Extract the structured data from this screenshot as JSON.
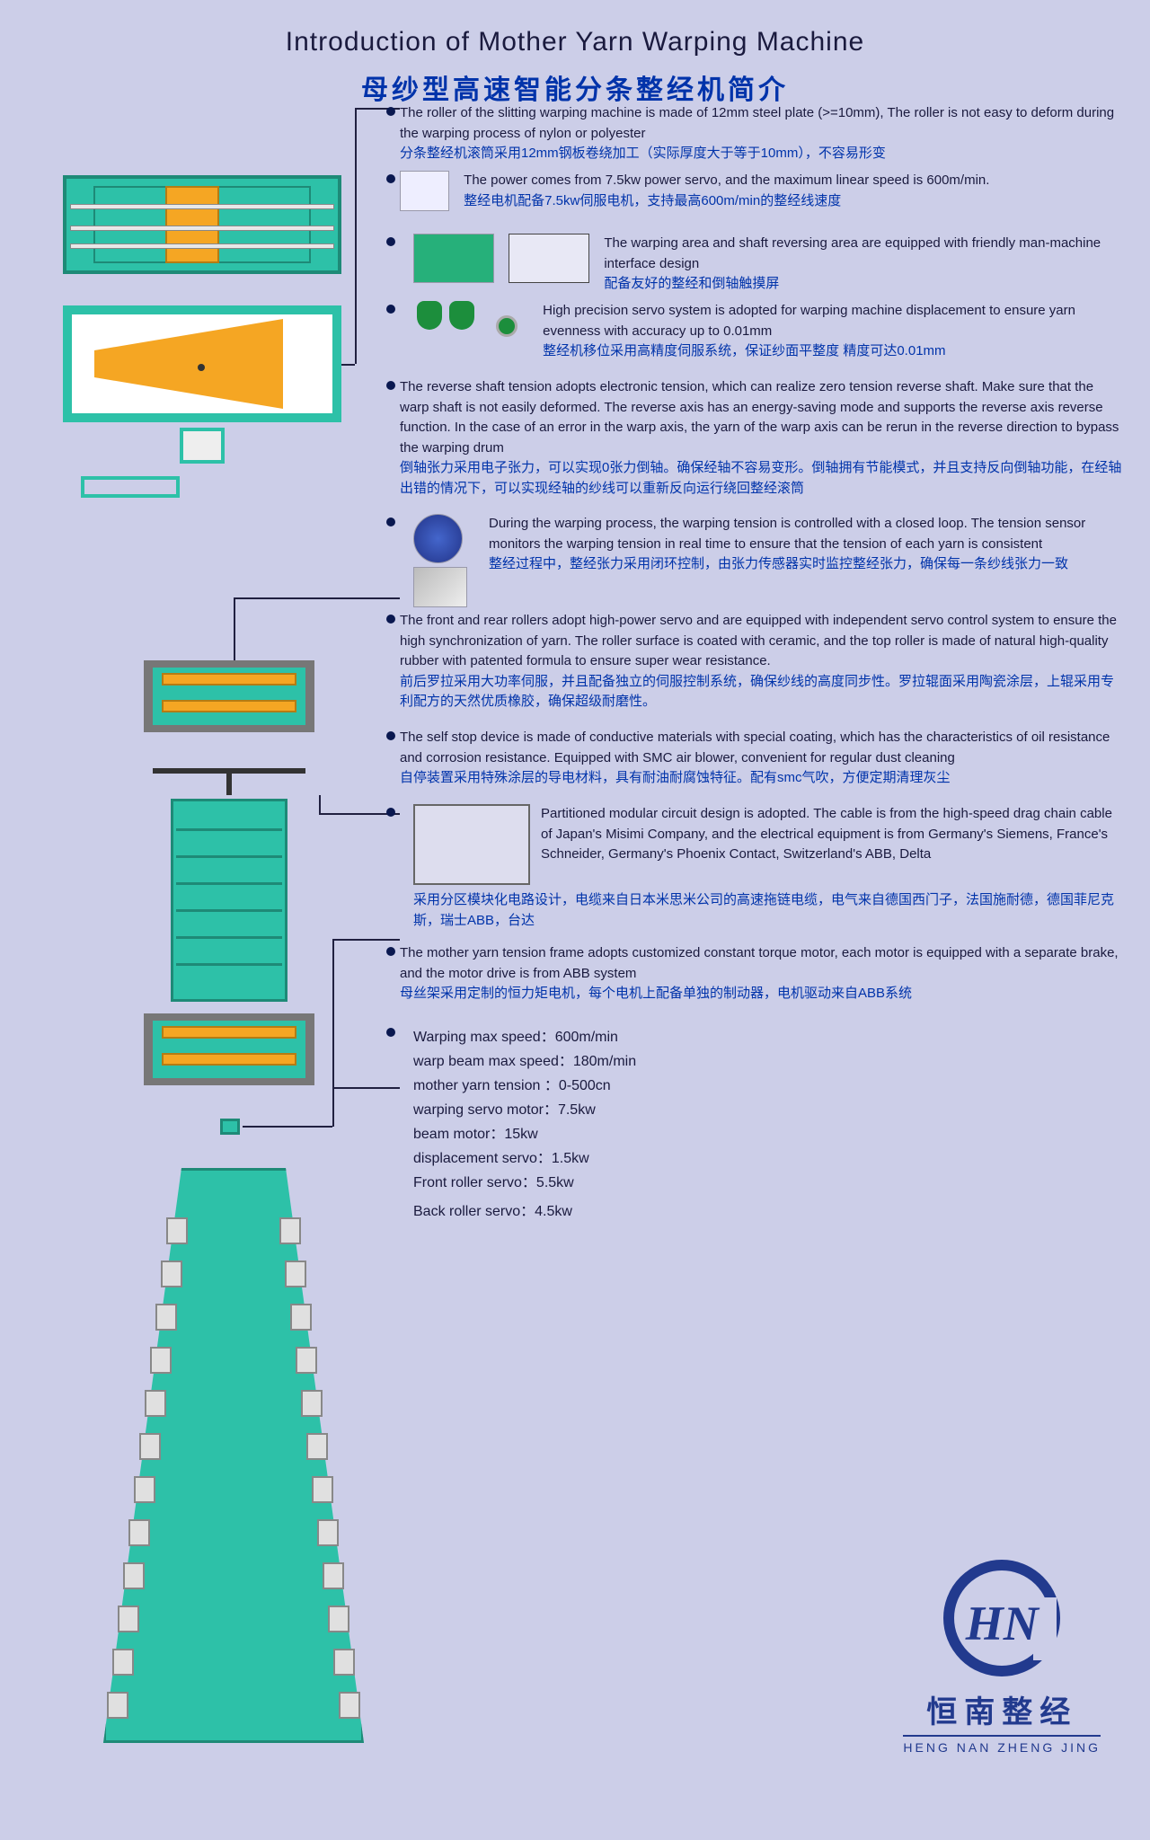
{
  "title_en": "Introduction of Mother Yarn Warping Machine",
  "title_cn": "母纱型高速智能分条整经机简介",
  "colors": {
    "background": "#cccee8",
    "teal": "#2dc1a8",
    "teal_dark": "#1e8a77",
    "orange": "#f5a623",
    "text": "#1a1a3e",
    "text_cn": "#0033aa",
    "brand": "#223a8e"
  },
  "callouts": [
    {
      "en": "The roller of the slitting warping machine is made of 12mm steel plate (>=10mm), The roller is not easy to deform during the warping process of nylon or polyester",
      "cn": "分条整经机滚筒采用12mm钢板卷绕加工（实际厚度大于等于10mm），不容易形变"
    },
    {
      "en": "The power comes from 7.5kw power servo, and the maximum linear speed is 600m/min.",
      "cn": "整经电机配备7.5kw伺服电机，支持最高600m/min的整经线速度"
    },
    {
      "en": "The warping area and shaft reversing area are equipped with friendly man-machine interface design",
      "cn": "配备友好的整经和倒轴触摸屏"
    },
    {
      "en": "High precision servo system is adopted for warping machine displacement to ensure yarn evenness with accuracy up to 0.01mm",
      "cn": "整经机移位采用高精度伺服系统，保证纱面平整度 精度可达0.01mm"
    },
    {
      "en": "The reverse shaft tension adopts electronic tension, which can realize zero tension reverse shaft. Make sure that the warp shaft is not easily deformed. The reverse axis has an energy-saving mode and supports the reverse axis reverse function. In the case of an error in the warp axis, the yarn of the warp axis can be rerun in the reverse direction to bypass the warping drum",
      "cn": "倒轴张力采用电子张力，可以实现0张力倒轴。确保经轴不容易变形。倒轴拥有节能模式，并且支持反向倒轴功能，在经轴出错的情况下，可以实现经轴的纱线可以重新反向运行绕回整经滚筒"
    },
    {
      "en": "During the warping process, the warping tension is controlled with a closed loop. The tension sensor monitors the warping tension in real time to ensure that the tension of each yarn is consistent",
      "cn": "整经过程中，整经张力采用闭环控制，由张力传感器实时监控整经张力，确保每一条纱线张力一致"
    },
    {
      "en": "The front and rear rollers adopt high-power servo and are equipped with independent servo control system to ensure the high synchronization of yarn. The roller surface is coated with ceramic, and the top roller is made of natural high-quality rubber with patented formula to ensure super wear resistance.",
      "cn": "前后罗拉采用大功率伺服，并且配备独立的伺服控制系统，确保纱线的高度同步性。罗拉辊面采用陶瓷涂层，上辊采用专利配方的天然优质橡胶，确保超级耐磨性。"
    },
    {
      "en": "The self stop device is made of conductive materials with special coating, which has the characteristics of oil resistance and corrosion resistance. Equipped with SMC air blower, convenient for regular dust cleaning",
      "cn": "自停装置采用特殊涂层的导电材料，具有耐油耐腐蚀特征。配有smc气吹，方便定期清理灰尘"
    },
    {
      "en": "Partitioned modular circuit design is adopted. The cable is from the high-speed drag chain cable of Japan's Misimi Company, and the electrical equipment is from Germany's Siemens, France's Schneider, Germany's Phoenix Contact, Switzerland's ABB, Delta",
      "cn": "采用分区模块化电路设计，电缆来自日本米思米公司的高速拖链电缆，电气来自德国西门子，法国施耐德，德国菲尼克斯，瑞士ABB，台达"
    },
    {
      "en": "The mother yarn tension frame adopts customized constant torque motor, each motor is equipped with a separate brake, and the motor drive is from ABB system",
      "cn": "母丝架采用定制的恒力矩电机，每个电机上配备单独的制动器，电机驱动来自ABB系统"
    }
  ],
  "specs": [
    "Warping max speed：600m/min",
    "warp beam max speed：180m/min",
    "mother yarn tension ：0-500cn",
    "warping servo motor：7.5kw",
    "beam motor：15kw",
    "displacement servo：1.5kw",
    "Front roller servo：5.5kw",
    "Back roller servo：4.5kw"
  ],
  "logo": {
    "initials": "HN",
    "cn": "恒南整经",
    "pinyin": "HENG NAN ZHENG JING"
  }
}
